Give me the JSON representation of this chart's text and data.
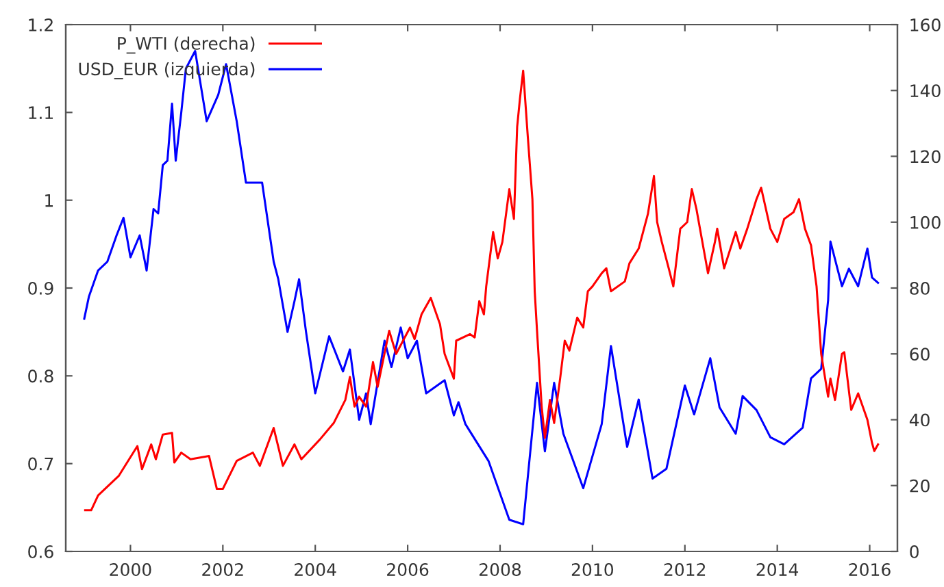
{
  "chart_data": {
    "type": "line",
    "xlim": [
      1998.6,
      2016.6
    ],
    "xticks": [
      2000,
      2002,
      2004,
      2006,
      2008,
      2010,
      2012,
      2014,
      2016
    ],
    "ylim": [
      0.6,
      1.2
    ],
    "yticks": [
      {
        "value": 0.6,
        "label": "0.6"
      },
      {
        "value": 0.7,
        "label": "0.7"
      },
      {
        "value": 0.8,
        "label": "0.8"
      },
      {
        "value": 0.9,
        "label": "0.9"
      },
      {
        "value": 1.0,
        "label": "1"
      },
      {
        "value": 1.1,
        "label": "1.1"
      },
      {
        "value": 1.2,
        "label": "1.2"
      }
    ],
    "y2lim": [
      0,
      160
    ],
    "y2ticks": [
      0,
      20,
      40,
      60,
      80,
      100,
      120,
      140,
      160
    ],
    "legend": "top left",
    "grid": false,
    "series": [
      {
        "name": "P_WTI (derecha)",
        "color": "#ff0000",
        "axis": "y2",
        "x": [
          1999.02,
          1999.15,
          1999.3,
          1999.75,
          2000.15,
          2000.25,
          2000.45,
          2000.55,
          2000.7,
          2000.9,
          2000.95,
          2001.1,
          2001.3,
          2001.7,
          2001.87,
          2002.0,
          2002.3,
          2002.65,
          2002.8,
          2003.1,
          2003.3,
          2003.55,
          2003.7,
          2004.1,
          2004.4,
          2004.65,
          2004.75,
          2004.85,
          2004.95,
          2005.1,
          2005.25,
          2005.35,
          2005.6,
          2005.75,
          2006.05,
          2006.15,
          2006.3,
          2006.5,
          2006.7,
          2006.8,
          2007.0,
          2007.05,
          2007.35,
          2007.45,
          2007.55,
          2007.65,
          2007.7,
          2007.85,
          2007.95,
          2008.05,
          2008.2,
          2008.3,
          2008.37,
          2008.43,
          2008.5,
          2008.6,
          2008.7,
          2008.75,
          2008.8,
          2008.9,
          2008.97,
          2009.08,
          2009.17,
          2009.3,
          2009.4,
          2009.5,
          2009.67,
          2009.8,
          2009.9,
          2010.0,
          2010.2,
          2010.3,
          2010.4,
          2010.7,
          2010.8,
          2011.0,
          2011.2,
          2011.33,
          2011.4,
          2011.5,
          2011.65,
          2011.75,
          2011.9,
          2012.05,
          2012.15,
          2012.25,
          2012.5,
          2012.65,
          2012.7,
          2012.85,
          2013.1,
          2013.2,
          2013.35,
          2013.55,
          2013.65,
          2013.85,
          2014.0,
          2014.15,
          2014.35,
          2014.47,
          2014.6,
          2014.73,
          2014.85,
          2014.95,
          2015.1,
          2015.15,
          2015.25,
          2015.4,
          2015.45,
          2015.6,
          2015.75,
          2015.95,
          2016.05,
          2016.1,
          2016.18
        ],
        "values": [
          12.5,
          12.5,
          17,
          23,
          32,
          25,
          32.5,
          28,
          35.5,
          36,
          27,
          30,
          28,
          29,
          19,
          19,
          27.5,
          30,
          26,
          37.5,
          26,
          32.5,
          28,
          34,
          39,
          46,
          53,
          44,
          47,
          44,
          57.5,
          50,
          67,
          60,
          68,
          64.5,
          72,
          77,
          69,
          60,
          52.5,
          64,
          66,
          65,
          76,
          72,
          80.5,
          97,
          89,
          94,
          110,
          101,
          129,
          137.5,
          146,
          126,
          107,
          79,
          67,
          44,
          34.5,
          46,
          39,
          52.5,
          64,
          61,
          71,
          68,
          79,
          80.5,
          84.5,
          86,
          79,
          82,
          87.5,
          92,
          102.5,
          114,
          100,
          94,
          86,
          80.5,
          98,
          100,
          110,
          104,
          84.5,
          94,
          98,
          86,
          97,
          92,
          98,
          107,
          110.5,
          98,
          94,
          101,
          103,
          107,
          98,
          93,
          80.5,
          60,
          47,
          52.5,
          46,
          60,
          60.5,
          43,
          48,
          40,
          33,
          30.5,
          32.5
        ]
      },
      {
        "name": "USD_EUR (izquierda)",
        "color": "#0000ff",
        "x": [
          1999.0,
          1999.1,
          1999.3,
          1999.5,
          1999.7,
          1999.85,
          2000.0,
          2000.2,
          2000.35,
          2000.5,
          2000.6,
          2000.7,
          2000.8,
          2000.9,
          2000.98,
          2001.1,
          2001.2,
          2001.4,
          2001.65,
          2001.9,
          2002.07,
          2002.3,
          2002.5,
          2002.85,
          2003.1,
          2003.2,
          2003.4,
          2003.55,
          2003.65,
          2003.8,
          2004.0,
          2004.3,
          2004.6,
          2004.75,
          2004.95,
          2005.1,
          2005.2,
          2005.5,
          2005.65,
          2005.85,
          2006.0,
          2006.2,
          2006.4,
          2006.8,
          2007.0,
          2007.1,
          2007.25,
          2007.75,
          2008.2,
          2008.5,
          2008.8,
          2008.97,
          2009.17,
          2009.37,
          2009.8,
          2010.2,
          2010.4,
          2010.75,
          2011.0,
          2011.3,
          2011.6,
          2012.0,
          2012.2,
          2012.55,
          2012.75,
          2013.1,
          2013.25,
          2013.55,
          2013.85,
          2014.15,
          2014.55,
          2014.73,
          2014.95,
          2015.1,
          2015.15,
          2015.4,
          2015.55,
          2015.75,
          2015.95,
          2016.05,
          2016.18
        ],
        "values": [
          0.865,
          0.89,
          0.92,
          0.93,
          0.96,
          0.98,
          0.935,
          0.96,
          0.92,
          0.99,
          0.985,
          1.04,
          1.045,
          1.11,
          1.045,
          1.1,
          1.15,
          1.17,
          1.09,
          1.12,
          1.155,
          1.09,
          1.02,
          1.02,
          0.93,
          0.91,
          0.85,
          0.885,
          0.91,
          0.85,
          0.78,
          0.845,
          0.805,
          0.83,
          0.75,
          0.78,
          0.745,
          0.84,
          0.81,
          0.855,
          0.82,
          0.84,
          0.78,
          0.795,
          0.755,
          0.77,
          0.745,
          0.703,
          0.636,
          0.631,
          0.792,
          0.714,
          0.792,
          0.734,
          0.672,
          0.745,
          0.834,
          0.719,
          0.773,
          0.683,
          0.694,
          0.789,
          0.756,
          0.82,
          0.764,
          0.734,
          0.777,
          0.761,
          0.73,
          0.722,
          0.741,
          0.797,
          0.808,
          0.886,
          0.953,
          0.902,
          0.922,
          0.902,
          0.945,
          0.912,
          0.906
        ]
      }
    ]
  }
}
